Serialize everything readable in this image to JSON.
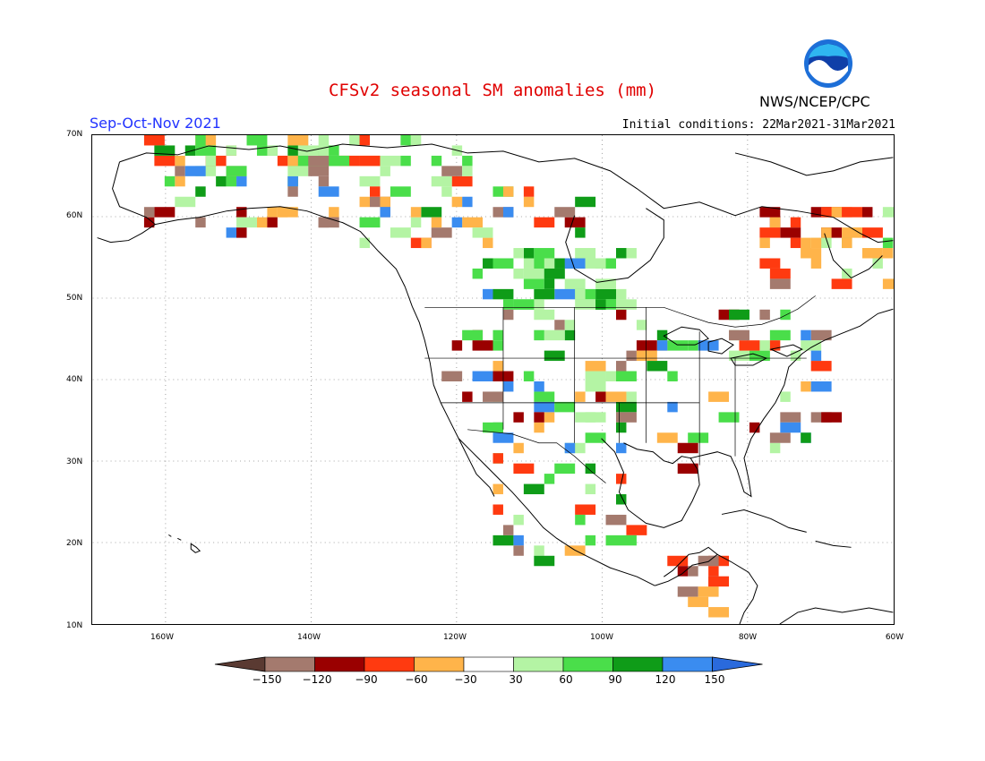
{
  "header": {
    "title": "CFSv2 seasonal SM anomalies (mm)",
    "season": "Sep-Oct-Nov 2021",
    "initial_conditions": "Initial conditions: 22Mar2021-31Mar2021",
    "agency": "NWS/NCEP/CPC",
    "logo_text": "NOAA"
  },
  "map": {
    "lat_labels": [
      "70N",
      "60N",
      "50N",
      "40N",
      "30N",
      "20N",
      "10N"
    ],
    "lon_labels": [
      "160W",
      "140W",
      "120W",
      "100W",
      "80W",
      "60W"
    ],
    "grid": "dotted",
    "extent": {
      "lon": [
        -170,
        -60
      ],
      "lat": [
        10,
        70
      ]
    }
  },
  "colorbar": {
    "labels": [
      "−150",
      "−120",
      "−90",
      "−60",
      "−30",
      "30",
      "60",
      "90",
      "120",
      "150"
    ],
    "colors": [
      "#5a3a32",
      "#a47a6e",
      "#9a0000",
      "#ff3a10",
      "#ffb44a",
      "#ffffff",
      "#b4f4a4",
      "#4ade4a",
      "#0f9c18",
      "#3a8cf0",
      "#2a6adc"
    ]
  },
  "colors": {
    "title": "#e00000",
    "season": "#2233ff",
    "coast": "#000000"
  }
}
